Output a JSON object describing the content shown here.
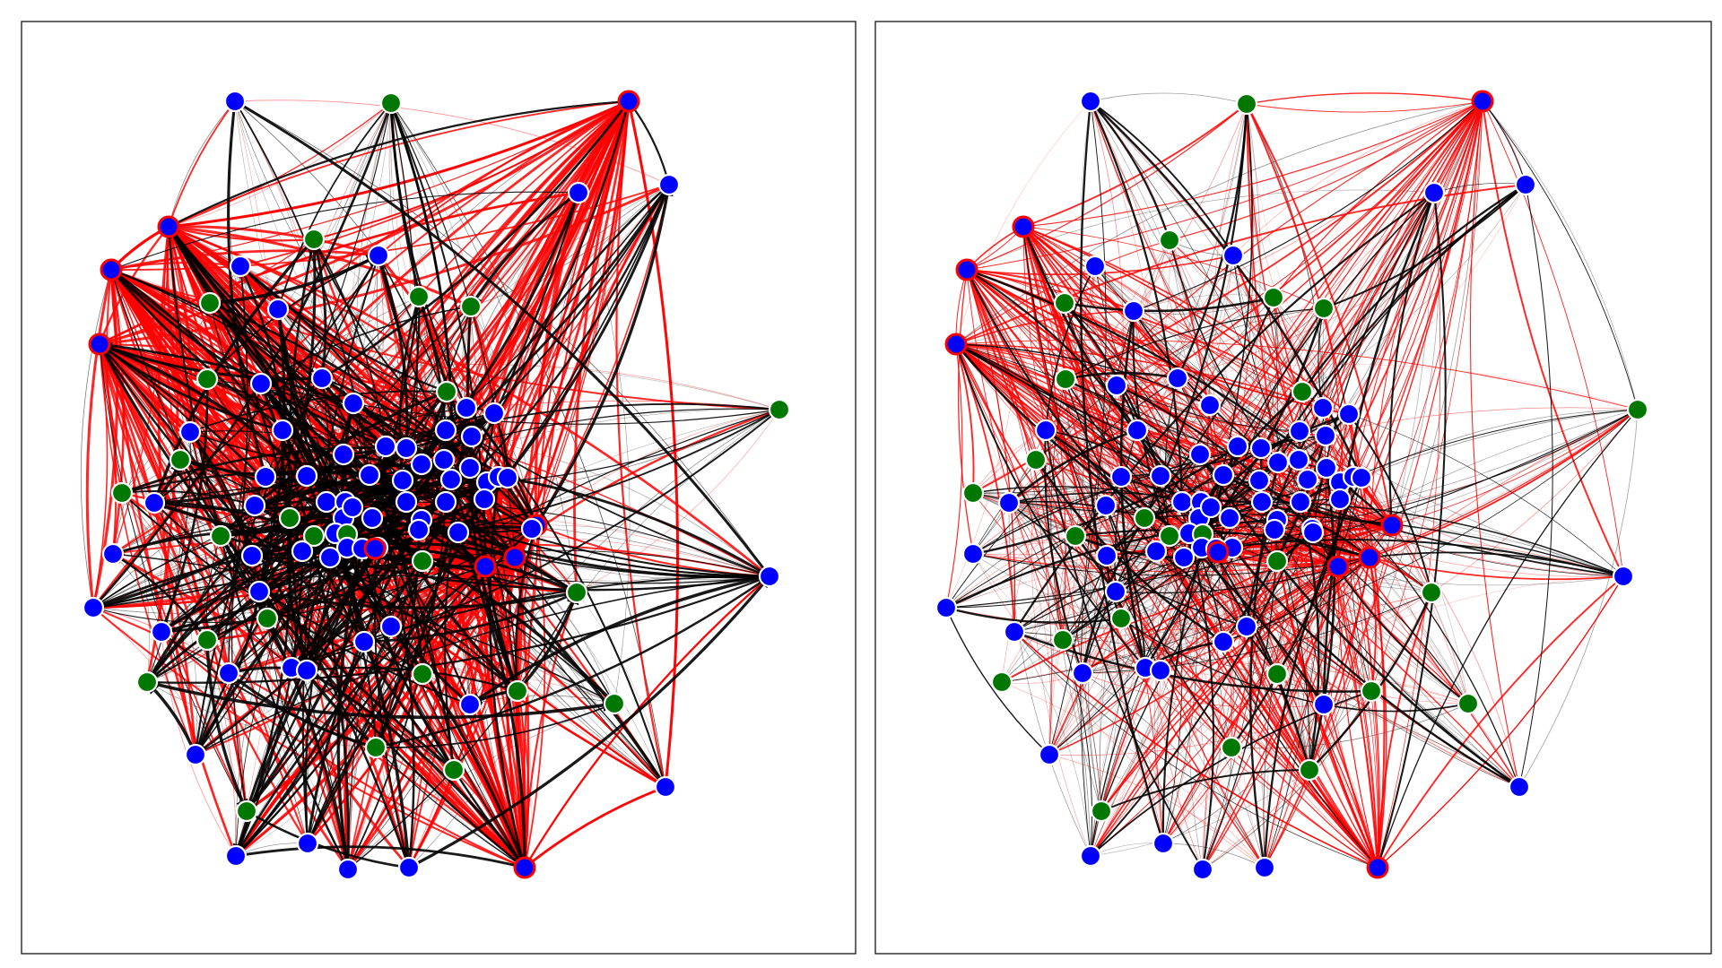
{
  "colors": {
    "node_blue": "#0000ff",
    "node_green": "#007700",
    "edge_black": "#000000",
    "edge_red": "#ff0000",
    "highlight_ring": "#ff0000",
    "node_outline": "#ffffff",
    "frame": "#000000",
    "background": "#ffffff"
  },
  "panels": [
    {
      "id": "left",
      "edge_style": "dense, thick directed edges",
      "node_count_approx": 90
    },
    {
      "id": "right",
      "edge_style": "lighter directed edges, red edges concentrated on right cluster",
      "node_count_approx": 90
    }
  ]
}
